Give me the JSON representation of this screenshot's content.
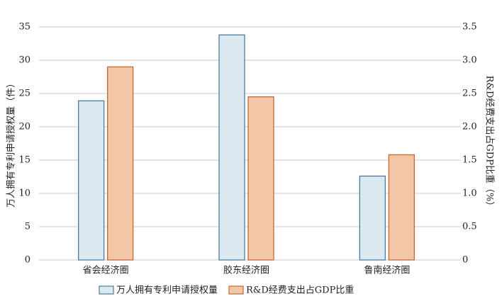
{
  "chart_data": {
    "type": "bar",
    "categories": [
      "省会经济圈",
      "胶东经济圈",
      "鲁南经济圈"
    ],
    "y_label": "万人拥有专利申请授权量（件）",
    "y2_label": "R&D经费支出占GDP比重（%）",
    "series": [
      {
        "name": "万人拥有专利申请授权量",
        "color": "#dce9f0",
        "edge_color": "#4d7c9a",
        "values": [
          23.9,
          33.8,
          12.6
        ]
      },
      {
        "name": "R&D经费支出占GDP比重",
        "color": "#f3c6a5",
        "edge_color": "#c0693a",
        "axis": "y2",
        "values": [
          2.9,
          2.45,
          1.58
        ]
      }
    ],
    "ylim": [
      0,
      35
    ],
    "yticks": [
      0,
      5,
      10,
      15,
      20,
      25,
      30,
      35
    ],
    "y2lim": [
      0,
      3.5
    ],
    "y2ticks": [
      0,
      0.5,
      {
        "value": 1,
        "label": "1.0"
      },
      1.5,
      {
        "value": 2,
        "label": "2.0"
      },
      2.5,
      {
        "value": 3,
        "label": "3.0"
      },
      3.5
    ],
    "grid": true,
    "legend": "bottom"
  }
}
